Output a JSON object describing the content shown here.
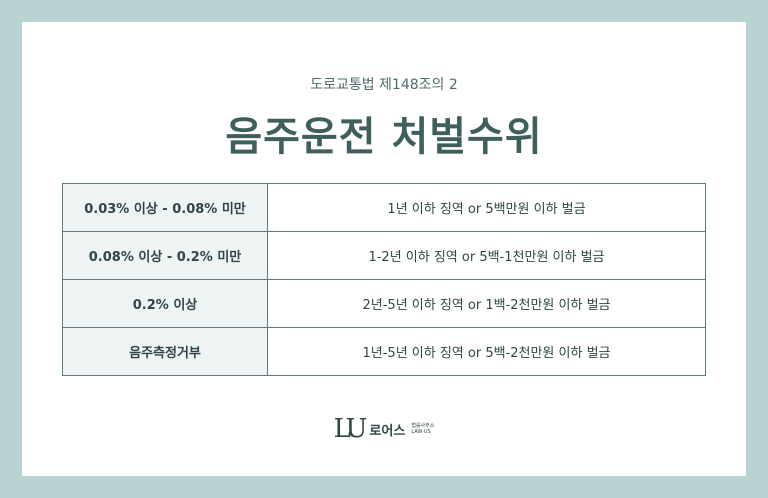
{
  "header": {
    "subtitle": "도로교통법 제148조의 2",
    "title": "음주운전 처벌수위"
  },
  "table": {
    "rows": [
      [
        "0.03% 이상 - 0.08% 미만",
        "1년 이하 징역 or 5백만원 이하 벌금"
      ],
      [
        "0.08% 이상 - 0.2% 미만",
        "1-2년 이하 징역 or 5백-1천만원 이하 벌금"
      ],
      [
        "0.2% 이상",
        "2년-5년 이하 징역 or 1백-2천만원 이하 벌금"
      ],
      [
        "음주측정거부",
        "1년-5년 이하 징역 or 5백-2천만원 이하 벌금"
      ]
    ]
  },
  "footer": {
    "logo": "LU",
    "brand": "로어스",
    "sub": "법률사무소",
    "en": "LAW·US"
  }
}
